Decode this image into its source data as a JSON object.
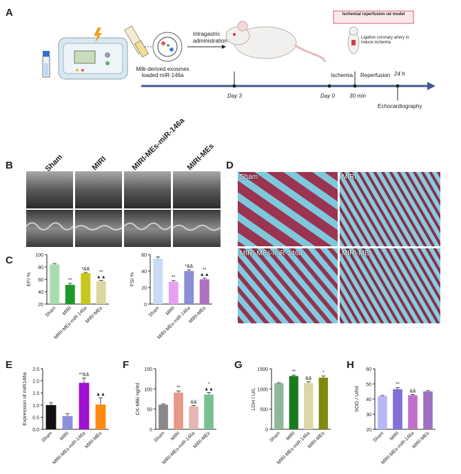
{
  "panels": {
    "A": "A",
    "B": "B",
    "C": "C",
    "D": "D",
    "E": "E",
    "F": "F",
    "G": "G",
    "H": "H"
  },
  "timeline": {
    "milk_label": "Milk-derived exosmes loaded miR-146a",
    "intragastric_label": "Intragastric administration",
    "day3": "Day 3",
    "day0": "Day 0",
    "ischemia": "Ischemia",
    "reperfusion": "Reperfusion",
    "min30": "30 min",
    "h24": "24 h",
    "echo": "Echocardiography",
    "model_box": "Ischemia/ reperfusion rat model",
    "ligation_note": "Ligation coronary artery to induce ischemia"
  },
  "echo_groups": [
    "Sham",
    "MIRI",
    "MIRI-MEs-miR-146a",
    "MIRI-MEs"
  ],
  "histo_groups": [
    "Sham",
    "MIRI",
    "MIRI-MEs-miR-146a",
    "MIRI-MEs"
  ],
  "colors": {
    "sham_c": "#a8dcb0",
    "miri_c": "#1e9a2a",
    "mes146_c": "#c6c820",
    "mes_c": "#dcd6a0",
    "sham_fs": "#c8dcf8",
    "miri_fs": "#e6a0f0",
    "mes146_fs": "#8c8ed8",
    "mes_fs": "#b070c0",
    "timeline": "#3f5a8e"
  },
  "chart_data": [
    {
      "panel": "C-left",
      "type": "bar",
      "categories": [
        "Sham",
        "MIRI",
        "MIRI-MEs-miR-146a",
        "MIRI-MEs"
      ],
      "values": [
        84,
        51,
        70,
        57
      ],
      "errors": [
        1.5,
        2.5,
        1,
        1.5
      ],
      "annotations": [
        "",
        "**",
        "*&&",
        "**\n▲▲"
      ],
      "ylabel": "EF/ %",
      "ylim": [
        20,
        100
      ],
      "yticks": [
        20,
        40,
        60,
        80,
        100
      ],
      "colors": [
        "#a8dcb0",
        "#1e9a2a",
        "#c6c820",
        "#dcd6a0"
      ]
    },
    {
      "panel": "C-right",
      "type": "bar",
      "categories": [
        "Sham",
        "MIRI",
        "MIRI-MEs-miR-146a",
        "MIRI-MEs"
      ],
      "values": [
        55,
        27,
        40,
        30
      ],
      "errors": [
        2,
        1.5,
        1.5,
        1.5
      ],
      "annotations": [
        "",
        "**",
        "*&&",
        "**\n▲▲"
      ],
      "ylabel": "FS/ %",
      "ylim": [
        0,
        60
      ],
      "yticks": [
        0,
        20,
        40,
        60
      ],
      "colors": [
        "#c8dcf8",
        "#e6a0f0",
        "#8c8ed8",
        "#b070c0"
      ]
    },
    {
      "panel": "E",
      "type": "bar",
      "categories": [
        "Sham",
        "MIRI",
        "MIRI-MEs-miR-146a",
        "MIRI-MEs"
      ],
      "values": [
        1.0,
        0.55,
        1.92,
        1.02
      ],
      "errors": [
        0.1,
        0.1,
        0.2,
        0.28
      ],
      "annotations": [
        "",
        "",
        "**&&",
        "▲▲"
      ],
      "ylabel": "Expression of miR146a",
      "ylim": [
        0,
        2.5
      ],
      "yticks": [
        0.0,
        0.5,
        1.0,
        1.5,
        2.0,
        2.5
      ],
      "colors": [
        "#111111",
        "#8a90d8",
        "#a010d0",
        "#ff8a10"
      ]
    },
    {
      "panel": "F",
      "type": "bar",
      "categories": [
        "Sham",
        "MIRI",
        "MIRI-MEs-miR-146a",
        "MIRI-MEs"
      ],
      "values": [
        61,
        91,
        57,
        86
      ],
      "errors": [
        2,
        4,
        2,
        5
      ],
      "annotations": [
        "",
        "**",
        "&&",
        "*\n▲▲"
      ],
      "ylabel": "CK-MB/ ng/ml",
      "ylim": [
        0,
        150
      ],
      "yticks": [
        0,
        50,
        100,
        150
      ],
      "colors": [
        "#888888",
        "#e89888",
        "#e4b8b0",
        "#78c090"
      ]
    },
    {
      "panel": "G",
      "type": "bar",
      "categories": [
        "Sham",
        "MIRI",
        "MIRI-MEs-miR-146a",
        "MIRI-MEs"
      ],
      "values": [
        1140,
        1320,
        1150,
        1280
      ],
      "errors": [
        10,
        25,
        30,
        40
      ],
      "annotations": [
        "",
        "**",
        "&&",
        "*"
      ],
      "ylabel": "LDH / U/L",
      "ylim": [
        0,
        1500
      ],
      "yticks": [
        0,
        500,
        1000,
        1500
      ],
      "colors": [
        "#90b898",
        "#1a7a20",
        "#dcd6a8",
        "#808a10"
      ]
    },
    {
      "panel": "H",
      "type": "bar",
      "categories": [
        "Sham",
        "MIRI",
        "MIRI-MEs-miR-146a",
        "MIRI-MEs"
      ],
      "values": [
        42,
        46.5,
        42.5,
        45
      ],
      "errors": [
        0.3,
        1,
        0.4,
        0.5
      ],
      "annotations": [
        "",
        "**",
        "&&",
        ""
      ],
      "ylabel": "SOD / U/ml",
      "ylim": [
        20,
        60
      ],
      "yticks": [
        20,
        30,
        40,
        50,
        60
      ],
      "colors": [
        "#b8b8f8",
        "#8070d8",
        "#c070c8",
        "#a070c0"
      ]
    }
  ]
}
